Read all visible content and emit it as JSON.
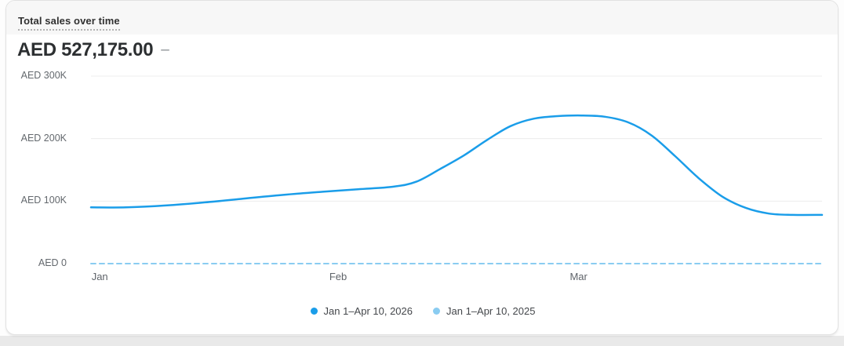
{
  "card": {
    "header": {
      "metric_tab_label": "Total sales over time"
    },
    "value": "AED 527,175.00",
    "change_indicator": "–"
  },
  "colors": {
    "primary_series": "#1a9de9",
    "comparison_series": "#8accf1",
    "gridline": "#ececec",
    "header_strip": "#f7f7f7",
    "page_strip": "#e9e9e9"
  },
  "chart_data": {
    "type": "line",
    "title": "Total sales over time",
    "total_label": "AED 527,175.00",
    "xlabel": "",
    "ylabel": "AED",
    "ylim": [
      0,
      300000
    ],
    "grid": "horizontal",
    "legend_position": "bottom-center",
    "y_ticks": [
      {
        "label": "AED 300K",
        "value": 300000
      },
      {
        "label": "AED 200K",
        "value": 200000
      },
      {
        "label": "AED 100K",
        "value": 100000
      },
      {
        "label": "AED 0",
        "value": 0
      }
    ],
    "x_ticks": [
      {
        "label": "Jan",
        "t": 0.012
      },
      {
        "label": "Feb",
        "t": 0.338
      },
      {
        "label": "Mar",
        "t": 0.667
      }
    ],
    "series": [
      {
        "name": "Jan 1–Apr 10, 2026",
        "color": "#1a9de9",
        "style": "solid",
        "points": [
          [
            0.0,
            90000
          ],
          [
            0.048,
            90000
          ],
          [
            0.102,
            93000
          ],
          [
            0.156,
            98000
          ],
          [
            0.209,
            104000
          ],
          [
            0.263,
            110000
          ],
          [
            0.317,
            115000
          ],
          [
            0.365,
            119000
          ],
          [
            0.413,
            123000
          ],
          [
            0.445,
            131000
          ],
          [
            0.477,
            151000
          ],
          [
            0.51,
            173000
          ],
          [
            0.542,
            198000
          ],
          [
            0.574,
            220000
          ],
          [
            0.606,
            232000
          ],
          [
            0.638,
            236000
          ],
          [
            0.671,
            237000
          ],
          [
            0.703,
            235000
          ],
          [
            0.735,
            226000
          ],
          [
            0.767,
            205000
          ],
          [
            0.799,
            172000
          ],
          [
            0.831,
            137000
          ],
          [
            0.864,
            107000
          ],
          [
            0.896,
            89000
          ],
          [
            0.928,
            80000
          ],
          [
            0.96,
            78000
          ],
          [
            1.0,
            78000
          ]
        ]
      },
      {
        "name": "Jan 1–Apr 10, 2025",
        "color": "#8accf1",
        "style": "dashed",
        "points": [
          [
            0.0,
            0
          ],
          [
            1.0,
            0
          ]
        ]
      }
    ]
  }
}
